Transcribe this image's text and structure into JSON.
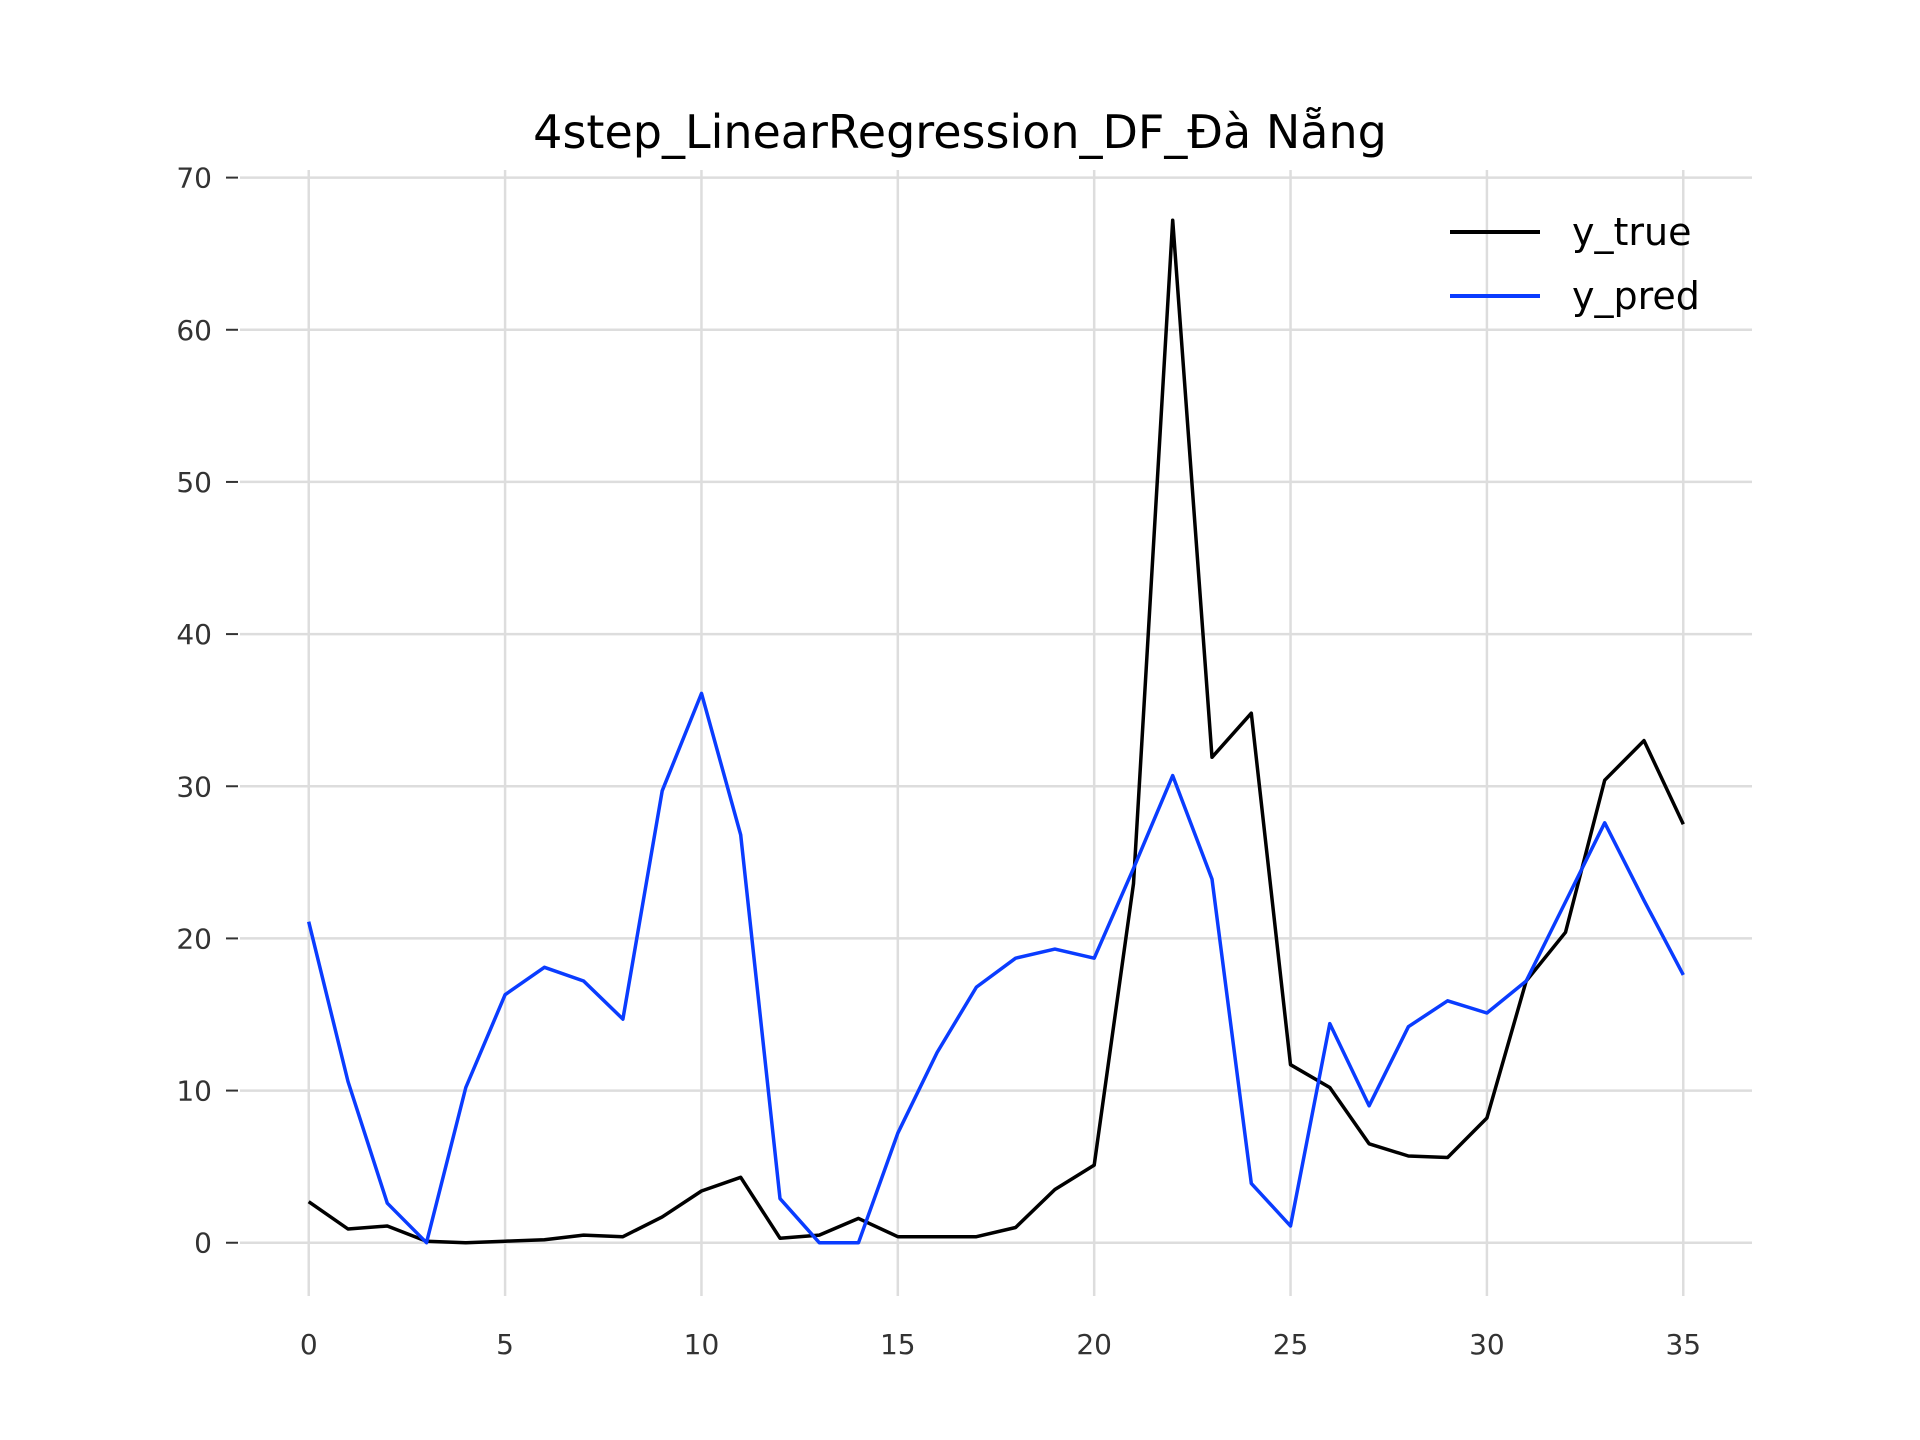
{
  "chart_data": {
    "type": "line",
    "title": "4step_LinearRegression_DF_Đà Nẵng",
    "xlabel": "",
    "ylabel": "",
    "xlim": [
      -1.75,
      36.75
    ],
    "ylim": [
      -3.5,
      70.5
    ],
    "xticks": [
      0,
      5,
      10,
      15,
      20,
      25,
      30,
      35
    ],
    "yticks": [
      0,
      10,
      20,
      30,
      40,
      50,
      60,
      70
    ],
    "grid": true,
    "legend_position": "top-right",
    "x": [
      0,
      1,
      2,
      3,
      4,
      5,
      6,
      7,
      8,
      9,
      10,
      11,
      12,
      13,
      14,
      15,
      16,
      17,
      18,
      19,
      20,
      21,
      22,
      23,
      24,
      25,
      26,
      27,
      28,
      29,
      30,
      31,
      32,
      33,
      34,
      35
    ],
    "series": [
      {
        "name": "y_true",
        "color": "#000000",
        "values": [
          2.7,
          0.9,
          1.1,
          0.1,
          0.0,
          0.1,
          0.2,
          0.5,
          0.4,
          1.7,
          3.4,
          4.3,
          0.3,
          0.5,
          1.6,
          0.4,
          0.4,
          0.4,
          1.0,
          3.5,
          5.1,
          23.6,
          67.2,
          31.9,
          34.8,
          11.7,
          10.2,
          6.5,
          5.7,
          5.6,
          8.2,
          17.2,
          20.4,
          30.4,
          33.0,
          27.5
        ]
      },
      {
        "name": "y_pred",
        "color": "#0a3cff",
        "values": [
          21.1,
          10.6,
          2.6,
          0.0,
          10.2,
          16.3,
          18.1,
          17.2,
          14.7,
          29.7,
          36.1,
          26.8,
          2.9,
          0.0,
          0.0,
          7.2,
          12.5,
          16.8,
          18.7,
          19.3,
          18.7,
          24.6,
          30.7,
          23.9,
          3.9,
          1.1,
          14.4,
          9.0,
          14.2,
          15.9,
          15.1,
          17.2,
          22.4,
          27.6,
          22.5,
          17.6
        ]
      }
    ]
  }
}
